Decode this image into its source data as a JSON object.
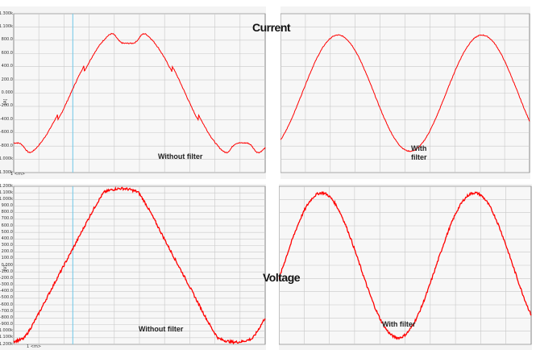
{
  "labels": {
    "current": "Current",
    "voltage": "Voltage",
    "without_filter_top": "Without filter",
    "with_filter_top_line1": "With",
    "with_filter_top_line2": "filter",
    "without_filter_bottom": "Without filter",
    "with_filter_bottom": "With filter",
    "cursor_top": "1  <m>",
    "cursor_bottom": "1  <m>"
  },
  "colors": {
    "trace": "#ff0000",
    "grid": "#c8c8c8",
    "cursor": "#70c8e8",
    "panel_bg": "#f4f4f4",
    "frame": "#444444"
  },
  "chart_data": [
    {
      "type": "line",
      "title": "",
      "ylabel": "[A]",
      "ylim": [
        -1300,
        1300
      ],
      "yticks": [
        "1.300k",
        "1.100k",
        "800.0",
        "600.0",
        "400.0",
        "200.0",
        "0.000",
        "-200.0",
        "-400.0",
        "-600.0",
        "-800.0",
        "-1.000k",
        "-1.300k"
      ],
      "xlim": [
        0,
        1.1
      ],
      "x_units": "periods",
      "series": [
        {
          "kind": "distorted_current",
          "amplitude": 1150,
          "phase": 0.75,
          "periods": 1.1
        }
      ]
    },
    {
      "type": "line",
      "title": "",
      "ylim": [
        -1300,
        1300
      ],
      "xlim": [
        0,
        1.73
      ],
      "x_units": "periods",
      "series": [
        {
          "kind": "sine",
          "amplitude": 950,
          "phase": 0.85,
          "periods": 1.73
        }
      ]
    },
    {
      "type": "line",
      "title": "",
      "ylabel": "[V]",
      "ylim": [
        -1200,
        1200
      ],
      "yticks": [
        "1.200k",
        "1.100k",
        "1.000k",
        "900.0",
        "800.0",
        "700.0",
        "600.0",
        "500.0",
        "400.0",
        "300.0",
        "200.0",
        "100.0",
        "0.000",
        "-100.0",
        "-200.0",
        "-300.0",
        "-400.0",
        "-500.0",
        "-600.0",
        "-700.0",
        "-800.0",
        "-900.0",
        "-1.000k",
        "-1.100k",
        "-1.200k"
      ],
      "xlim": [
        0,
        1.1
      ],
      "x_units": "periods",
      "series": [
        {
          "kind": "distorted_voltage",
          "amplitude": 1100,
          "phase": 0.78,
          "periods": 1.1
        }
      ]
    },
    {
      "type": "line",
      "title": "",
      "ylim": [
        -1200,
        1200
      ],
      "xlim": [
        0,
        1.65
      ],
      "x_units": "periods",
      "series": [
        {
          "kind": "sine",
          "amplitude": 1100,
          "phase": 0.97,
          "periods": 1.65
        }
      ]
    }
  ]
}
